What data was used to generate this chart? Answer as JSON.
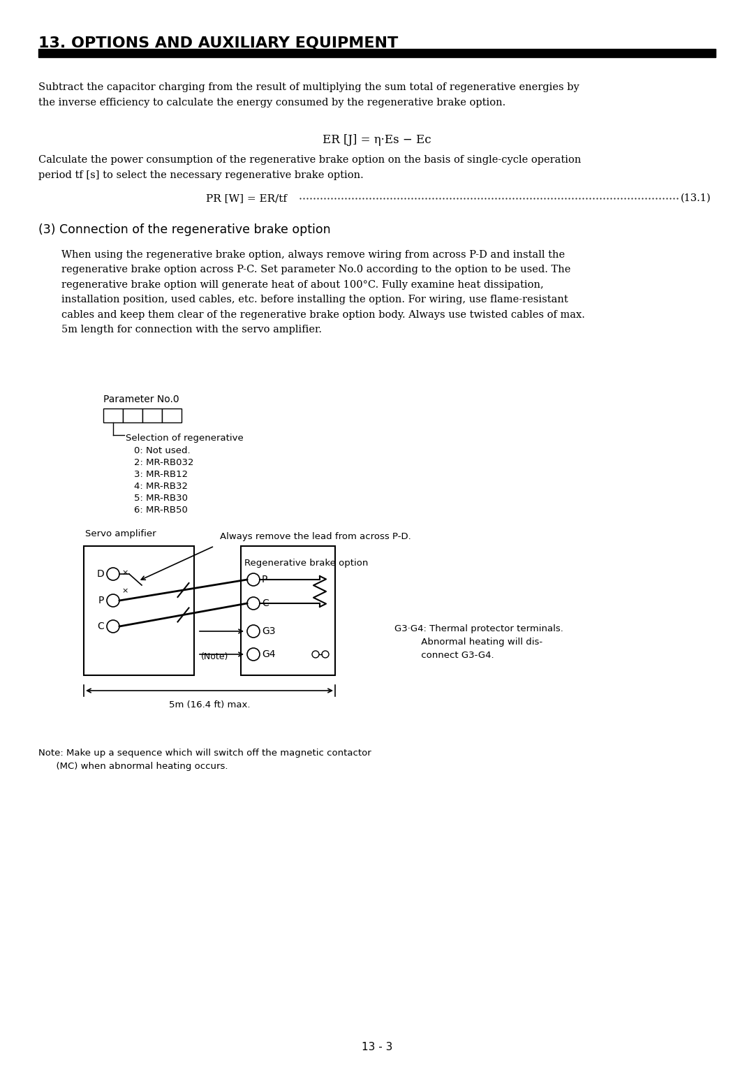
{
  "title": "13. OPTIONS AND AUXILIARY EQUIPMENT",
  "page_number": "13 - 3",
  "bg_color": "#ffffff",
  "text_color": "#000000",
  "header_bar_color": "#000000",
  "paragraph1": "Subtract the capacitor charging from the result of multiplying the sum total of regenerative energies by\nthe inverse efficiency to calculate the energy consumed by the regenerative brake option.",
  "formula1": "ER [J] = η·Es − Ec",
  "paragraph2": "Calculate the power consumption of the regenerative brake option on the basis of single-cycle operation\nperiod tf [s] to select the necessary regenerative brake option.",
  "formula2": "PR [W] = ER/tf",
  "formula2_right": "(13.1)",
  "section_title": "(3) Connection of the regenerative brake option",
  "body_text": "When using the regenerative brake option, always remove wiring from across P-D and install the\nregenerative brake option across P-C. Set parameter No.0 according to the option to be used. The\nregenerative brake option will generate heat of about 100°C. Fully examine heat dissipation,\ninstallation position, used cables, etc. before installing the option. For wiring, use flame-resistant\ncables and keep them clear of the regenerative brake option body. Always use twisted cables of max.\n5m length for connection with the servo amplifier.",
  "param_label": "Parameter No.0",
  "selection_label": "Selection of regenerative",
  "selection_items": [
    "0: Not used.",
    "2: MR-RB032",
    "3: MR-RB12",
    "4: MR-RB32",
    "5: MR-RB30",
    "6: MR-RB50"
  ],
  "servo_amplifier_label": "Servo amplifier",
  "arrow_label": "Always remove the lead from across P-D.",
  "regen_label": "Regenerative brake option",
  "g3g4_note": "G3·G4: Thermal protector terminals.\n         Abnormal heating will dis-\n         connect G3-G4.",
  "note_text": "Note: Make up a sequence which will switch off the magnetic contactor\n      (MC) when abnormal heating occurs.",
  "dim_label": "5m (16.4 ft) max.",
  "note_inline": "(Note)"
}
